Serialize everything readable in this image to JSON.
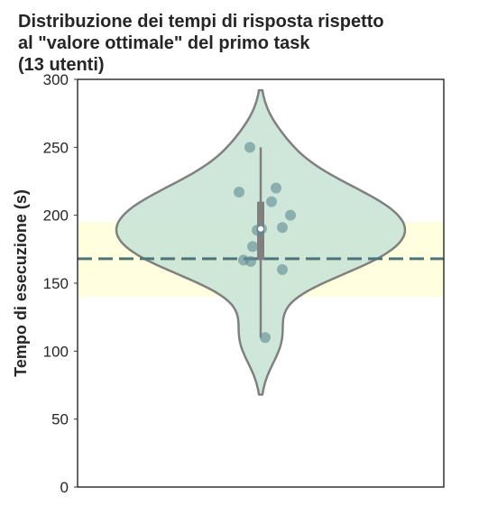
{
  "chart_data": {
    "type": "violin",
    "title": "Distribuzione dei tempi di risposta rispetto\nal \"valore ottimale\" del primo task\n(13 utenti)",
    "xlabel": "",
    "ylabel": "Tempo di esecuzione (s)",
    "ylim": [
      0,
      300
    ],
    "yticks": [
      0,
      50,
      100,
      150,
      200,
      250,
      300
    ],
    "grid": false,
    "points": [
      250,
      220,
      217,
      210,
      200,
      191,
      190,
      189,
      177,
      167,
      166,
      160,
      110
    ],
    "median": 190,
    "quartiles": [
      167,
      210
    ],
    "whiskers": [
      110,
      250
    ],
    "violin_range": [
      68,
      292
    ],
    "reference_line": 168,
    "reference_band": [
      140,
      195
    ],
    "colors": {
      "violin_fill": "#c6e3d3",
      "violin_edge": "#808080",
      "band": "#ffffe0",
      "reference_line": "#4e7378",
      "points": "#5f8a93",
      "box": "#808080"
    }
  }
}
